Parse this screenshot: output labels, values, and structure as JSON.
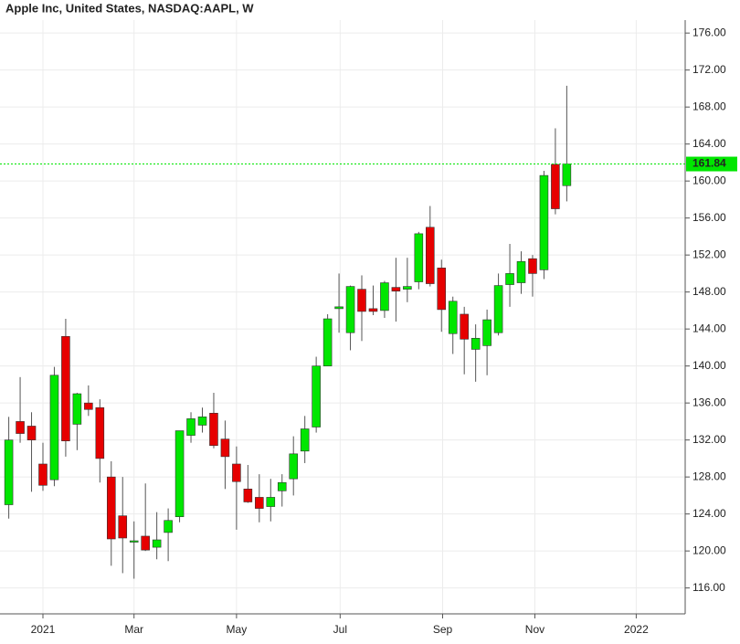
{
  "chart_data": {
    "type": "candlestick",
    "title": "Apple Inc, United States, NASDAQ:AAPL, W",
    "x": [
      -3,
      -2,
      -1,
      0,
      1,
      2,
      3,
      4,
      5,
      6,
      7,
      8,
      9,
      10,
      11,
      12,
      13,
      14,
      15,
      16,
      17,
      18,
      19,
      20,
      21,
      22,
      23,
      24,
      25,
      26,
      27,
      28,
      29,
      30,
      31,
      32,
      33,
      34,
      35,
      36,
      37,
      38,
      39,
      40,
      41,
      42,
      43,
      44,
      45,
      46
    ],
    "open": [
      125.0,
      134.0,
      133.5,
      129.4,
      127.7,
      143.2,
      133.7,
      136.0,
      135.5,
      128.0,
      123.8,
      121.0,
      121.6,
      120.4,
      122.0,
      123.7,
      132.5,
      133.6,
      134.9,
      132.1,
      129.4,
      126.7,
      125.8,
      124.8,
      126.5,
      127.8,
      130.8,
      133.4,
      140.0,
      146.2,
      143.6,
      148.3,
      146.2,
      146.0,
      148.5,
      148.3,
      149.1,
      155.0,
      150.6,
      143.5,
      145.6,
      141.8,
      142.2,
      143.6,
      148.8,
      149.0,
      151.6,
      150.4,
      161.8,
      159.5
    ],
    "high": [
      134.5,
      138.8,
      135.0,
      131.7,
      139.9,
      145.1,
      137.1,
      137.9,
      136.4,
      129.7,
      128.0,
      123.2,
      127.3,
      124.2,
      124.6,
      133.0,
      135.0,
      135.5,
      137.1,
      134.1,
      131.3,
      129.3,
      128.3,
      127.8,
      128.3,
      132.4,
      134.6,
      141.0,
      145.6,
      150.0,
      148.7,
      149.8,
      148.7,
      149.2,
      151.7,
      151.7,
      154.5,
      157.3,
      151.5,
      147.5,
      146.4,
      144.5,
      146.1,
      150.0,
      153.2,
      152.4,
      152.0,
      161.1,
      165.7,
      170.3
    ],
    "low": [
      123.5,
      131.7,
      126.4,
      126.5,
      127.0,
      130.2,
      130.9,
      134.6,
      127.4,
      118.4,
      117.6,
      117.0,
      120.0,
      119.1,
      118.9,
      123.1,
      131.7,
      132.8,
      131.1,
      126.7,
      122.3,
      125.2,
      123.1,
      123.2,
      124.8,
      126.0,
      129.5,
      132.8,
      140.0,
      143.6,
      141.7,
      142.7,
      145.5,
      145.2,
      144.8,
      146.9,
      148.3,
      148.6,
      143.7,
      141.3,
      139.1,
      138.3,
      139.0,
      143.3,
      146.4,
      147.8,
      147.5,
      149.4,
      156.4,
      157.8
    ],
    "close": [
      132.0,
      132.7,
      132.0,
      127.1,
      139.0,
      131.9,
      137.0,
      135.3,
      130.0,
      121.3,
      121.4,
      121.1,
      120.1,
      121.2,
      123.3,
      133.0,
      134.3,
      134.5,
      131.4,
      130.2,
      127.5,
      125.3,
      124.6,
      125.8,
      127.4,
      130.5,
      133.2,
      140.0,
      145.1,
      146.4,
      148.6,
      145.9,
      145.9,
      149.0,
      148.1,
      148.6,
      154.3,
      148.9,
      146.1,
      147.0,
      142.9,
      143.0,
      145.0,
      148.7,
      150.0,
      151.3,
      150.0,
      160.6,
      157.0,
      161.84
    ],
    "up_color": "#00e600",
    "down_color": "#e60000",
    "last_price": 161.84,
    "last_price_color": "#00e600",
    "xlim": [
      -3.77,
      56.4
    ],
    "xticks": [
      {
        "value": 0,
        "label": "2021"
      },
      {
        "value": 8.0,
        "label": "Mar"
      },
      {
        "value": 17.0,
        "label": "May"
      },
      {
        "value": 26.1,
        "label": "Jul"
      },
      {
        "value": 35.1,
        "label": "Sep"
      },
      {
        "value": 43.2,
        "label": "Nov"
      },
      {
        "value": 52.1,
        "label": "2022"
      }
    ],
    "ylim": [
      113.2,
      177.4
    ],
    "yticks": [
      {
        "value": 116,
        "label": "116.00"
      },
      {
        "value": 120,
        "label": "120.00"
      },
      {
        "value": 124,
        "label": "124.00"
      },
      {
        "value": 128,
        "label": "128.00"
      },
      {
        "value": 132,
        "label": "132.00"
      },
      {
        "value": 136,
        "label": "136.00"
      },
      {
        "value": 140,
        "label": "140.00"
      },
      {
        "value": 144,
        "label": "144.00"
      },
      {
        "value": 148,
        "label": "148.00"
      },
      {
        "value": 152,
        "label": "152.00"
      },
      {
        "value": 156,
        "label": "156.00"
      },
      {
        "value": 160,
        "label": "160.00"
      },
      {
        "value": 164,
        "label": "164.00"
      },
      {
        "value": 168,
        "label": "168.00"
      },
      {
        "value": 172,
        "label": "172.00"
      },
      {
        "value": 176,
        "label": "176.00"
      }
    ],
    "grid": true
  }
}
